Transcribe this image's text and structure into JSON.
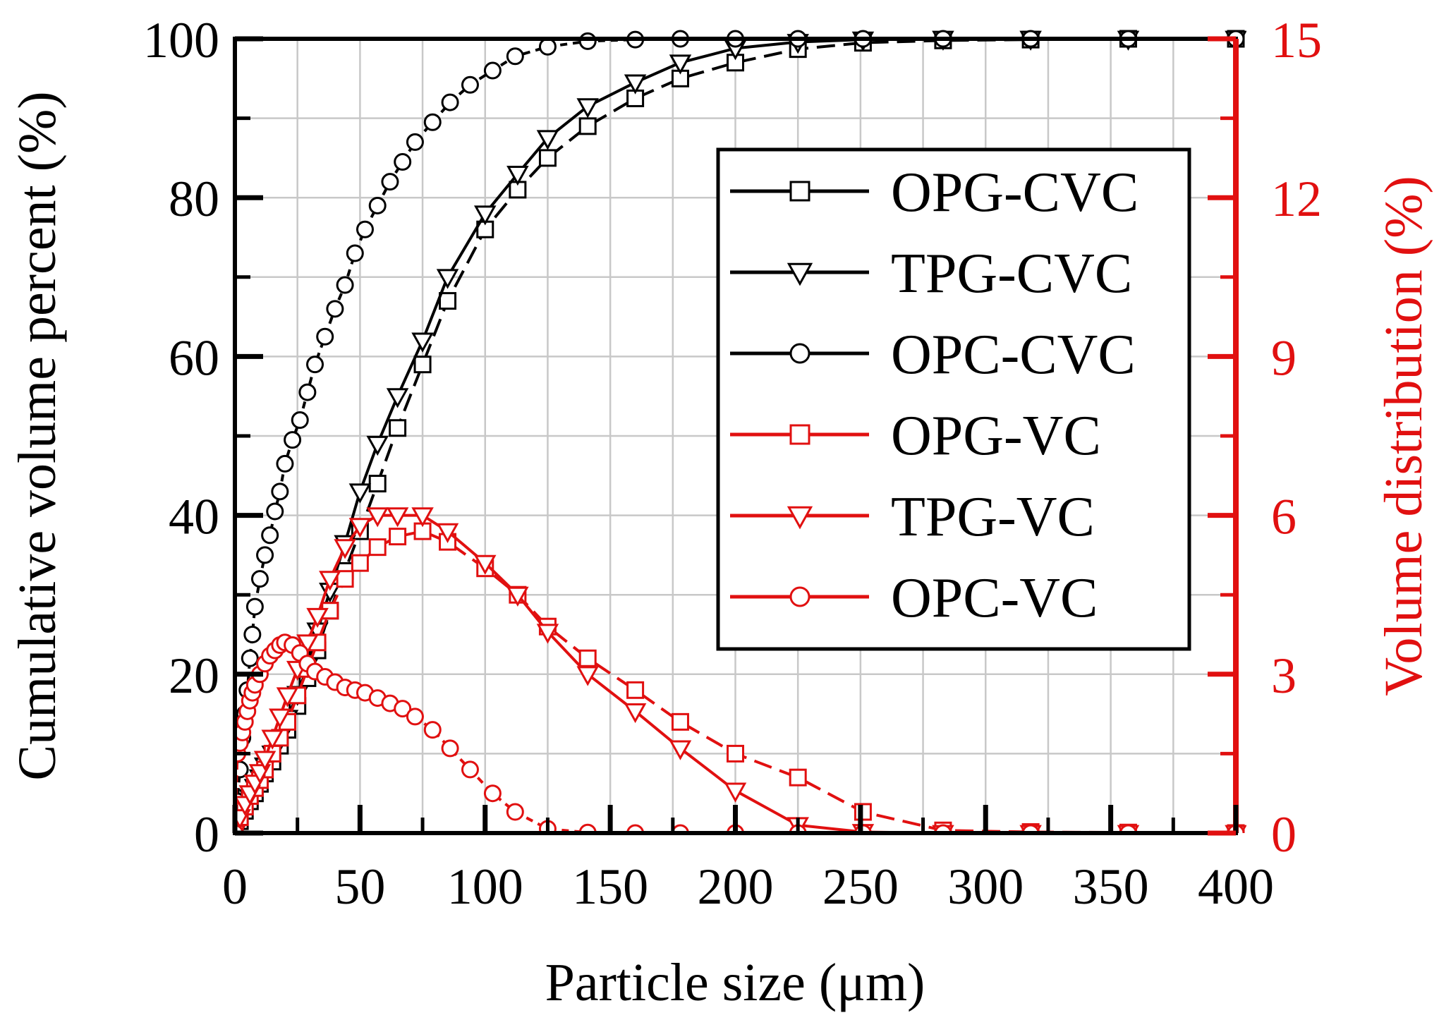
{
  "chart_data": {
    "type": "line",
    "xlabel": "Particle size (μm)",
    "ylabel_left": "Cumulative volume percent (%)",
    "ylabel_right": "Volume distribution (%)",
    "xlim": [
      0,
      400
    ],
    "ylim_left": [
      0,
      100
    ],
    "ylim_right": [
      0,
      15
    ],
    "x_ticks": [
      0,
      50,
      100,
      150,
      200,
      250,
      300,
      350,
      400
    ],
    "y_ticks_left": [
      0,
      20,
      40,
      60,
      80,
      100
    ],
    "y_ticks_right": [
      0,
      3,
      6,
      9,
      12,
      15
    ],
    "grid": true,
    "legend_position": "right-center",
    "colors": {
      "black": "#000000",
      "red": "#e11010",
      "grid": "#c8c8c8"
    },
    "series": [
      {
        "name": "OPG-CVC",
        "axis": "left",
        "color": "#000000",
        "marker": "square",
        "dash": "dashed",
        "x": [
          0,
          2,
          4,
          6,
          8,
          10,
          12,
          15,
          18,
          21,
          25,
          29,
          33,
          38,
          44,
          50,
          57,
          65,
          75,
          85,
          100,
          113,
          125,
          141,
          160,
          178,
          200,
          225,
          251,
          283,
          318,
          357,
          400
        ],
        "y": [
          0,
          1.5,
          2.8,
          4,
          5,
          6.2,
          7.5,
          9,
          11,
          13,
          16,
          19.5,
          23,
          28,
          33,
          38,
          44,
          51,
          59,
          67,
          76,
          81,
          85,
          89,
          92.5,
          95,
          97,
          98.7,
          99.5,
          99.8,
          99.9,
          100,
          100
        ]
      },
      {
        "name": "TPG-CVC",
        "axis": "left",
        "color": "#000000",
        "marker": "triangle",
        "dash": "solid",
        "x": [
          0,
          2,
          4,
          6,
          8,
          10,
          12,
          15,
          18,
          21,
          25,
          29,
          33,
          38,
          44,
          50,
          57,
          65,
          75,
          85,
          100,
          113,
          125,
          141,
          160,
          178,
          200,
          225,
          251,
          283,
          318,
          357,
          400
        ],
        "y": [
          0,
          1.8,
          3.2,
          4.5,
          5.8,
          7,
          8.5,
          10,
          12,
          14.5,
          17.5,
          21,
          25.5,
          30.5,
          36.5,
          43,
          49,
          55,
          62,
          70,
          78,
          83,
          87.5,
          91.5,
          94.5,
          97,
          98.8,
          99.6,
          99.9,
          100,
          100,
          100,
          100
        ]
      },
      {
        "name": "OPC-CVC",
        "axis": "left",
        "color": "#000000",
        "marker": "circle",
        "dash": "dotted",
        "x": [
          0,
          1,
          2,
          3,
          4,
          5,
          6,
          7,
          8,
          10,
          12,
          14,
          16,
          18,
          20,
          23,
          26,
          29,
          32,
          36,
          40,
          44,
          48,
          52,
          57,
          62,
          67,
          72,
          79,
          86,
          94,
          103,
          112,
          125,
          141,
          160,
          178,
          200,
          225,
          251,
          283,
          318,
          357,
          400
        ],
        "y": [
          0,
          4,
          8,
          12,
          15,
          18,
          22,
          25,
          28.5,
          32,
          35,
          37.5,
          40.5,
          43,
          46.5,
          49.5,
          52,
          55.5,
          59,
          62.5,
          66,
          69,
          73,
          76,
          79,
          82,
          84.5,
          87,
          89.5,
          92,
          94.2,
          96,
          97.8,
          99,
          99.7,
          99.9,
          100,
          100,
          100,
          100,
          100,
          100,
          100,
          100
        ]
      },
      {
        "name": "OPG-VC",
        "axis": "right",
        "color": "#e11010",
        "marker": "square",
        "dash": "dashed",
        "x": [
          0,
          2,
          4,
          6,
          8,
          10,
          12,
          15,
          18,
          21,
          25,
          29,
          33,
          38,
          44,
          50,
          57,
          65,
          75,
          85,
          100,
          113,
          125,
          141,
          160,
          178,
          200,
          225,
          251,
          283,
          318,
          357,
          400
        ],
        "y": [
          0,
          0.3,
          0.5,
          0.7,
          0.85,
          1.0,
          1.2,
          1.5,
          1.8,
          2.1,
          2.6,
          3.1,
          3.6,
          4.2,
          4.8,
          5.1,
          5.4,
          5.6,
          5.7,
          5.5,
          5.0,
          4.5,
          3.9,
          3.3,
          2.7,
          2.1,
          1.5,
          1.05,
          0.4,
          0.05,
          0.02,
          0.01,
          0
        ]
      },
      {
        "name": "TPG-VC",
        "axis": "right",
        "color": "#e11010",
        "marker": "triangle",
        "dash": "solid",
        "x": [
          0,
          2,
          4,
          6,
          8,
          10,
          12,
          15,
          18,
          21,
          25,
          29,
          33,
          38,
          44,
          50,
          57,
          65,
          75,
          85,
          100,
          113,
          125,
          141,
          160,
          178,
          200,
          225,
          251,
          283,
          318,
          357,
          400
        ],
        "y": [
          0,
          0.3,
          0.55,
          0.75,
          0.95,
          1.15,
          1.4,
          1.8,
          2.2,
          2.6,
          3.1,
          3.6,
          4.1,
          4.8,
          5.4,
          5.8,
          6.0,
          6.0,
          6.0,
          5.7,
          5.1,
          4.5,
          3.8,
          3.0,
          2.3,
          1.6,
          0.8,
          0.15,
          0.02,
          0,
          0,
          0,
          0
        ]
      },
      {
        "name": "OPC-VC",
        "axis": "right",
        "color": "#e11010",
        "marker": "circle",
        "dash": "dotted",
        "x": [
          0,
          1,
          2,
          3,
          4,
          5,
          6,
          7,
          8,
          10,
          12,
          14,
          16,
          18,
          20,
          23,
          26,
          29,
          32,
          36,
          40,
          44,
          48,
          52,
          57,
          62,
          67,
          72,
          79,
          86,
          94,
          103,
          112,
          125,
          141,
          160,
          178,
          200,
          225,
          251,
          283,
          318,
          357,
          400
        ],
        "y": [
          0,
          1.5,
          1.7,
          1.9,
          2.1,
          2.3,
          2.5,
          2.65,
          2.8,
          3.0,
          3.2,
          3.35,
          3.45,
          3.55,
          3.6,
          3.55,
          3.4,
          3.2,
          3.05,
          2.95,
          2.85,
          2.75,
          2.7,
          2.65,
          2.55,
          2.45,
          2.35,
          2.2,
          1.95,
          1.6,
          1.2,
          0.75,
          0.4,
          0.08,
          0.01,
          0,
          0,
          0,
          0,
          0,
          0,
          0,
          0,
          0
        ]
      }
    ]
  }
}
